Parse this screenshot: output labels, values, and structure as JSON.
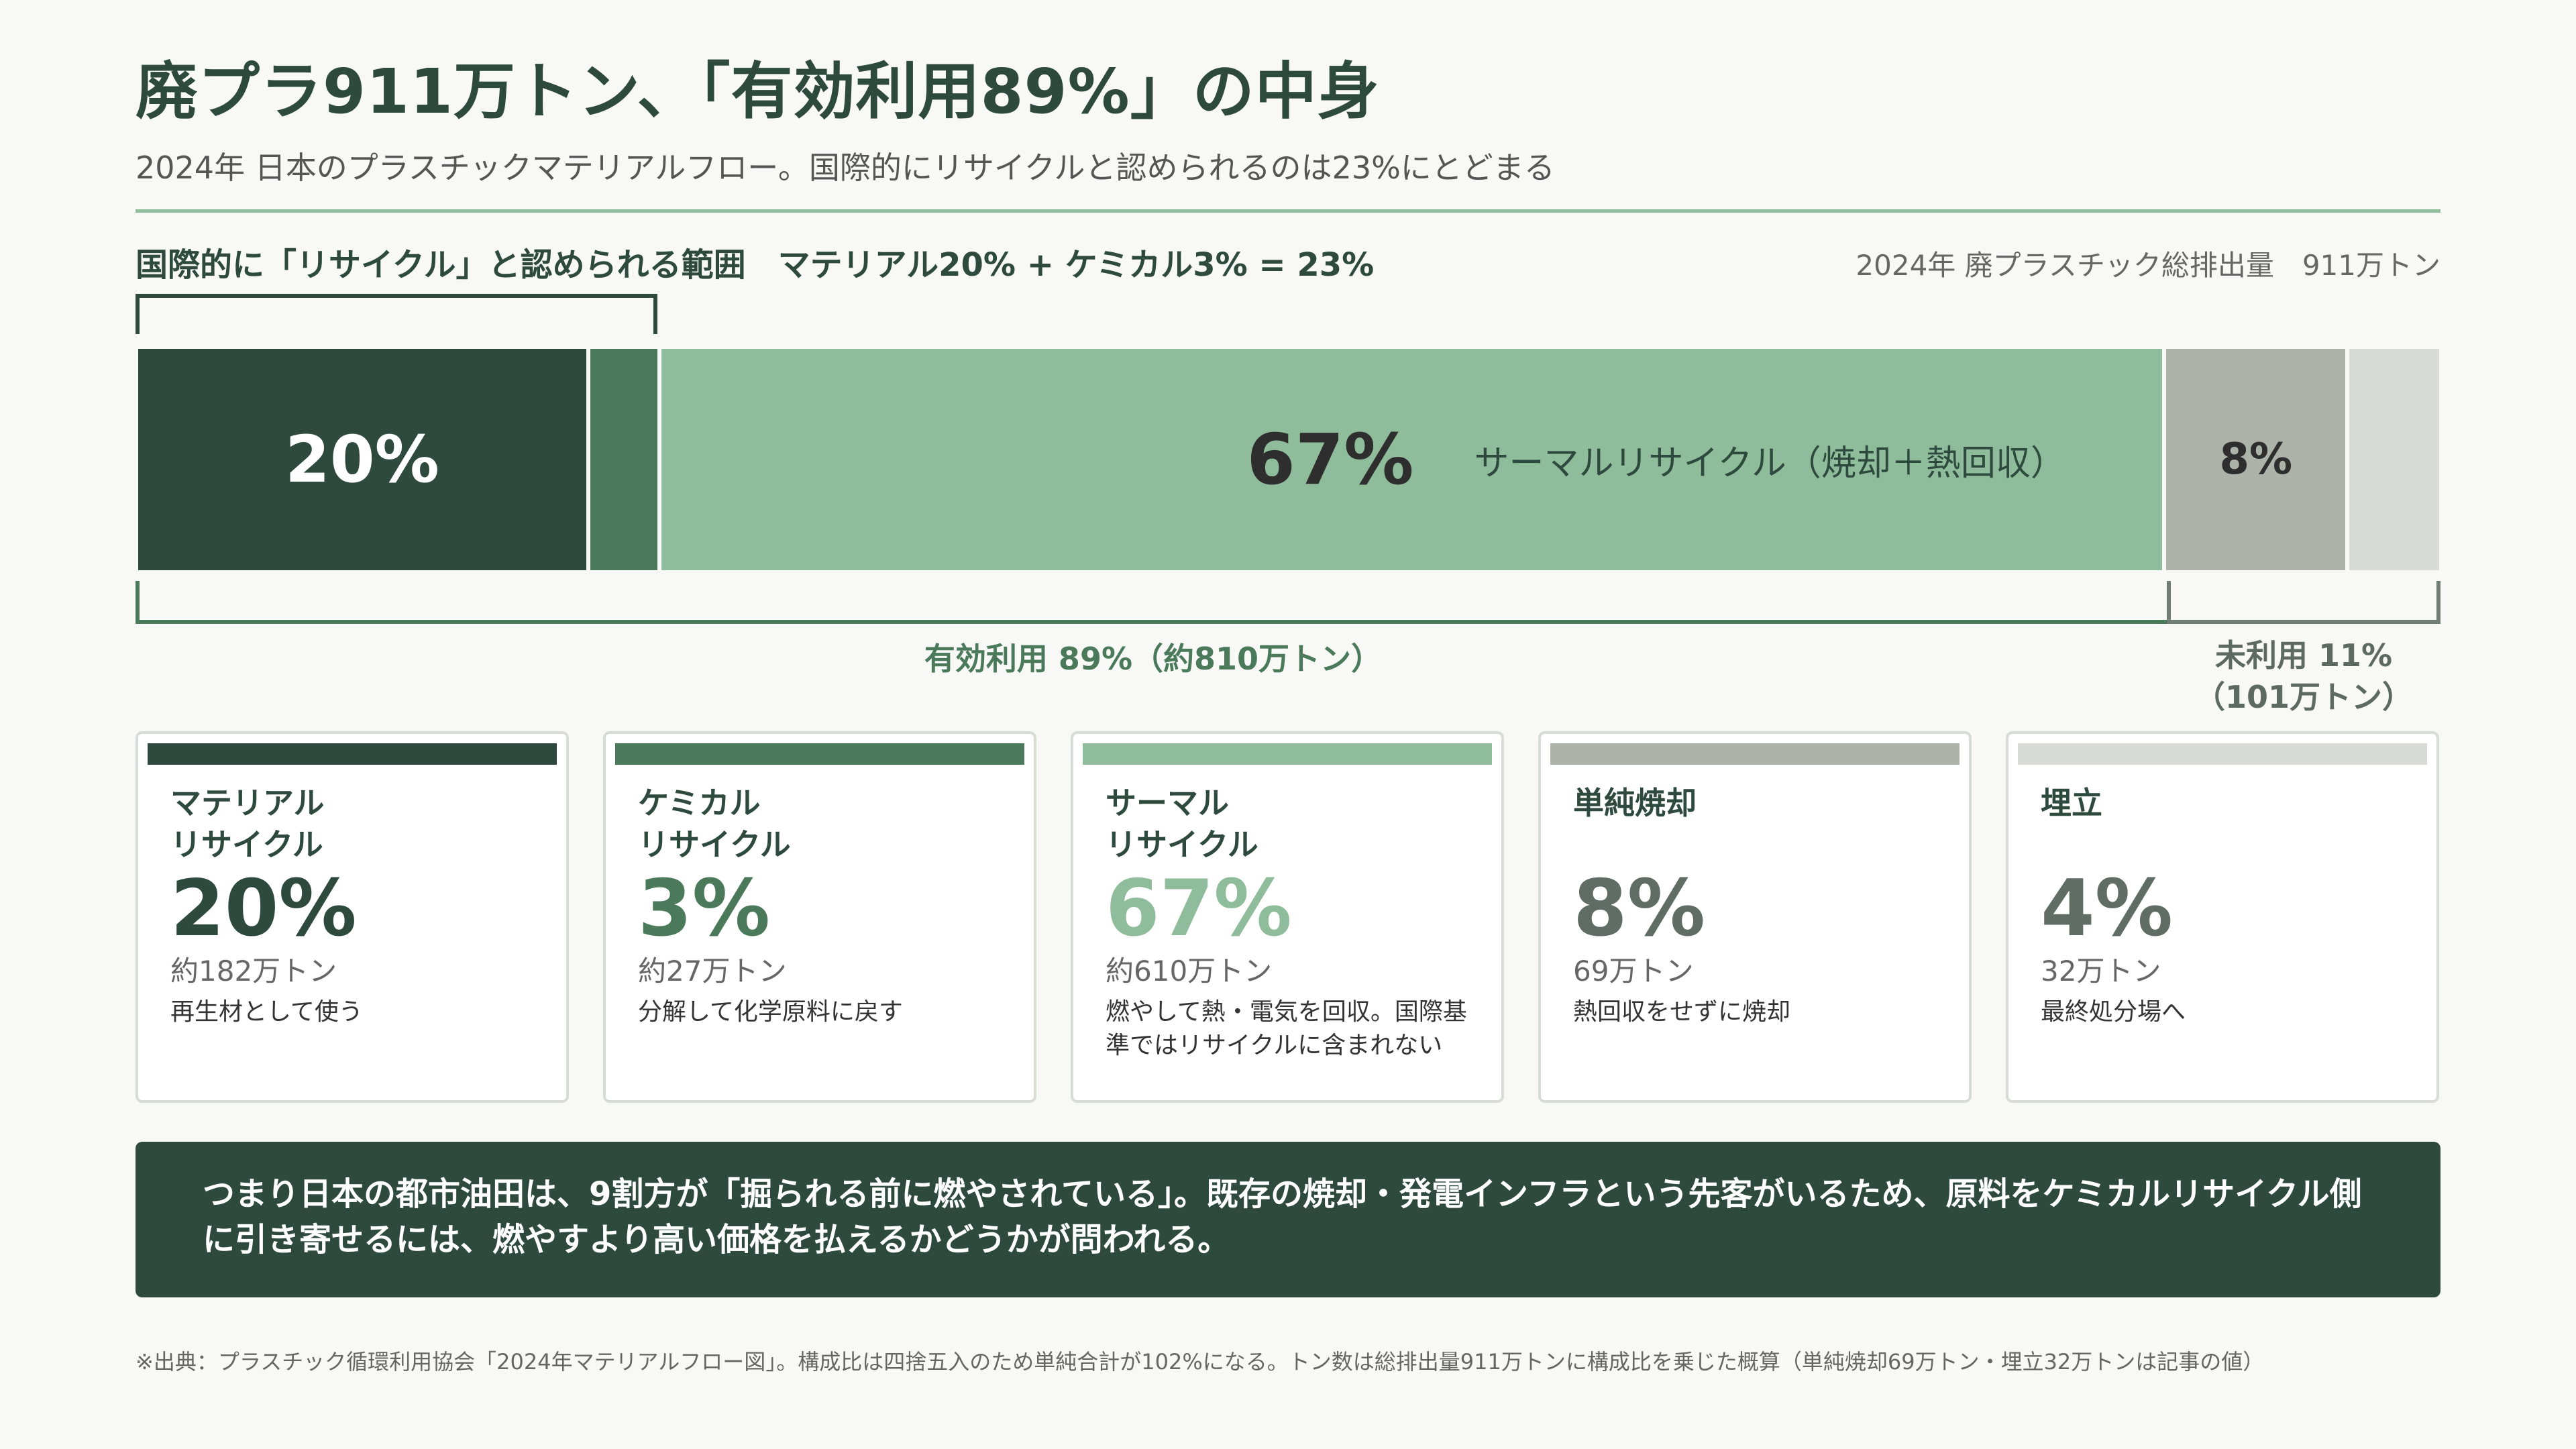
{
  "title": "廃プラ911万トン、「有効利用89%」の中身",
  "subtitle": "2024年 日本のプラスチックマテリアルフロー。国際的にリサイクルと認められるのは23%にとどまる",
  "scope_label": "国際的に「リサイクル」と認められる範囲　マテリアル20% + ケミカル3% = 23%",
  "total_label": "2024年 廃プラスチック総排出量　911万トン",
  "effective_label": "有効利用 89%（約810万トン）",
  "unused_label_1": "未利用 11%",
  "unused_label_2": "（101万トン）",
  "colors": {
    "material": "#2e4a3e",
    "chemical": "#4a7a59",
    "thermal": "#8fbc9a",
    "incineration": "#aeb3a9",
    "landfill": "#d8dbd5"
  },
  "chart_data": {
    "type": "bar",
    "orientation": "horizontal-stacked",
    "unit": "%",
    "total": "911万トン",
    "segments": [
      {
        "name": "マテリアルリサイクル",
        "value": 20,
        "label": "20%",
        "tons": "約182万トン",
        "color": "#2e4a3e"
      },
      {
        "name": "ケミカルリサイクル",
        "value": 3,
        "label": "",
        "tons": "約27万トン",
        "color": "#4a7a59"
      },
      {
        "name": "サーマルリサイクル",
        "value": 67,
        "label": "67%",
        "inline_label": "サーマルリサイクル（焼却＋熱回収）",
        "tons": "約610万トン",
        "color": "#8fbc9a"
      },
      {
        "name": "単純焼却",
        "value": 8,
        "label": "8%",
        "tons": "69万トン",
        "color": "#aeb3a9"
      },
      {
        "name": "埋立",
        "value": 4,
        "label": "",
        "tons": "32万トン",
        "color": "#d8dbd5"
      }
    ]
  },
  "cards": [
    {
      "name": "マテリアル\nリサイクル",
      "pct": "20%",
      "tons": "約182万トン",
      "desc": "再生材として使う",
      "color": "#2e4a3e",
      "pct_color": "#2e4a3e"
    },
    {
      "name": "ケミカル\nリサイクル",
      "pct": "3%",
      "tons": "約27万トン",
      "desc": "分解して化学原料に戻す",
      "color": "#4a7a59",
      "pct_color": "#4a7a59"
    },
    {
      "name": "サーマル\nリサイクル",
      "pct": "67%",
      "tons": "約610万トン",
      "desc": "燃やして熱・電気を回収。国際基準ではリサイクルに含まれない",
      "color": "#8fbc9a",
      "pct_color": "#8fbc9a"
    },
    {
      "name": "単純焼却",
      "pct": "8%",
      "tons": "69万トン",
      "desc": "熱回収をせずに焼却",
      "color": "#aeb3a9",
      "pct_color": "#5f6d64"
    },
    {
      "name": "埋立",
      "pct": "4%",
      "tons": "32万トン",
      "desc": "最終処分場へ",
      "color": "#d8dbd5",
      "pct_color": "#5f6d64"
    }
  ],
  "summary": "つまり日本の都市油田は、9割方が「掘られる前に燃やされている」。既存の焼却・発電インフラという先客がいるため、原料をケミカルリサイクル側に引き寄せるには、燃やすより高い価格を払えるかどうかが問われる。",
  "source": "※出典：プラスチック循環利用協会「2024年マテリアルフロー図」。構成比は四捨五入のため単純合計が102%になる。トン数は総排出量911万トンに構成比を乗じた概算（単純焼却69万トン・埋立32万トンは記事の値）"
}
